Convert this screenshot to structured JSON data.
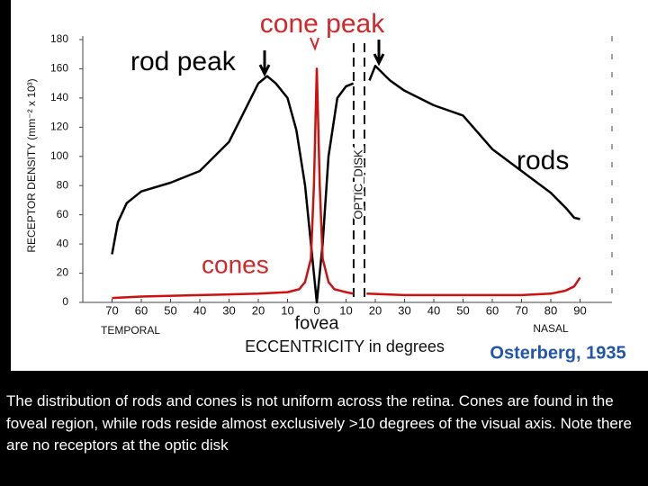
{
  "chart_data": {
    "type": "line",
    "cone_peak_label": "cone peak",
    "rod_peak_label": "rod peak",
    "y_label": "RECEPTOR DENSITY (mm⁻² x 10³)",
    "x_label": "ECCENTRICITY in degrees",
    "fovea_label": "fovea",
    "temporal_label": "TEMPORAL",
    "nasal_label": "NASAL",
    "optic_disk": {
      "label": "OPTIC_DISK",
      "range": [
        12.6,
        16.3
      ]
    },
    "source": "Osterberg, 1935",
    "xlim": [
      -78,
      100
    ],
    "ylim": [
      0,
      180
    ],
    "yticks": [
      0,
      20,
      40,
      60,
      80,
      100,
      120,
      140,
      160,
      180
    ],
    "xticks": [
      {
        "value": -70,
        "label": "70"
      },
      {
        "value": -60,
        "label": "60"
      },
      {
        "value": -50,
        "label": "50"
      },
      {
        "value": -40,
        "label": "40"
      },
      {
        "value": -30,
        "label": "30"
      },
      {
        "value": -20,
        "label": "20"
      },
      {
        "value": -10,
        "label": "10"
      },
      0,
      10,
      20,
      30,
      40,
      50,
      60,
      70,
      80,
      90
    ],
    "series": [
      {
        "name": "rods",
        "color": "#000000",
        "x": [
          -70,
          -68,
          -65,
          -60,
          -50,
          -40,
          -30,
          -25,
          -20,
          -17,
          -14,
          -10,
          -7,
          -4,
          -2,
          0,
          2,
          4,
          7,
          10,
          12.5,
          16.5,
          18,
          20,
          25,
          30,
          40,
          50,
          60,
          70,
          80,
          85,
          88,
          90
        ],
        "values": [
          33,
          55,
          68,
          76,
          82,
          90,
          110,
          130,
          150,
          155,
          150,
          140,
          118,
          80,
          40,
          0,
          40,
          100,
          140,
          148,
          150,
          null,
          152,
          162,
          152,
          145,
          135,
          128,
          105,
          90,
          75,
          65,
          58,
          57
        ]
      },
      {
        "name": "cones",
        "color": "#cc1111",
        "x": [
          -70,
          -60,
          -40,
          -20,
          -10,
          -6,
          -4,
          -2,
          -1,
          0,
          1,
          2,
          4,
          6,
          10,
          12.5,
          16.5,
          17,
          30,
          50,
          70,
          80,
          85,
          88,
          90
        ],
        "values": [
          3,
          4,
          5,
          6,
          7,
          9,
          14,
          30,
          80,
          160,
          80,
          30,
          14,
          9,
          7,
          6,
          null,
          6,
          5,
          5,
          5,
          6,
          8,
          11,
          17
        ]
      }
    ]
  },
  "caption": "The distribution of rods and cones is not uniform across the retina. Cones are found in the foveal region, while rods reside almost exclusively >10 degrees of the visual axis. Note there are no receptors at the optic disk"
}
